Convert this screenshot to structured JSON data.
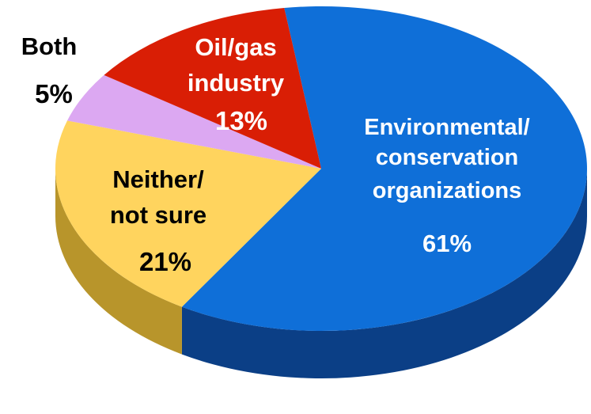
{
  "chart_data": {
    "type": "pie",
    "style": "3d",
    "title": "",
    "slices": [
      {
        "label_lines": [
          "Environmental/",
          "conservation",
          "organizations"
        ],
        "value": 61,
        "value_label": "61%",
        "color": "#0f6fd8",
        "side_color": "#0b3f86",
        "text_color": "#ffffff"
      },
      {
        "label_lines": [
          "Neither/",
          "not sure"
        ],
        "value": 21,
        "value_label": "21%",
        "color": "#ffd45e",
        "side_color": "#b8952b",
        "text_color": "#000000"
      },
      {
        "label_lines": [
          "Both"
        ],
        "value": 5,
        "value_label": "5%",
        "color": "#dca8f2",
        "side_color": "#9b6fb0",
        "text_color": "#000000"
      },
      {
        "label_lines": [
          "Oil/gas",
          "industry"
        ],
        "value": 13,
        "value_label": "13%",
        "color": "#d91e05",
        "side_color": "#8c1203",
        "text_color": "#ffffff"
      }
    ]
  }
}
